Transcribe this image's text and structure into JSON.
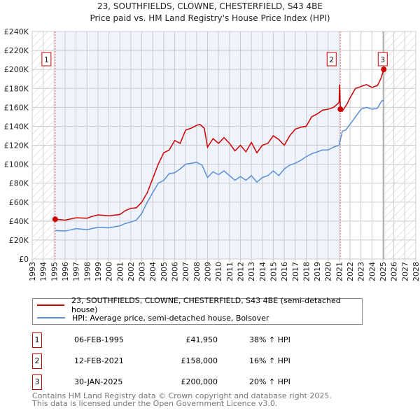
{
  "chart_data": {
    "type": "line",
    "title": "23, SOUTHFIELDS, CLOWNE, CHESTERFIELD, S43 4BE",
    "subtitle": "Price paid vs. HM Land Registry's House Price Index (HPI)",
    "xlim": [
      1993,
      2028
    ],
    "ylim": [
      0,
      240000
    ],
    "x_ticks": [
      "1993",
      "1994",
      "1995",
      "1996",
      "1997",
      "1998",
      "1999",
      "2000",
      "2001",
      "2002",
      "2003",
      "2004",
      "2005",
      "2006",
      "2007",
      "2008",
      "2009",
      "2010",
      "2011",
      "2012",
      "2013",
      "2014",
      "2015",
      "2016",
      "2017",
      "2018",
      "2019",
      "2020",
      "2021",
      "2022",
      "2023",
      "2024",
      "2025",
      "2026",
      "2027",
      "2028"
    ],
    "y_ticks": [
      {
        "v": 0,
        "label": "£0"
      },
      {
        "v": 20000,
        "label": "£20K"
      },
      {
        "v": 40000,
        "label": "£40K"
      },
      {
        "v": 60000,
        "label": "£60K"
      },
      {
        "v": 80000,
        "label": "£80K"
      },
      {
        "v": 100000,
        "label": "£100K"
      },
      {
        "v": 120000,
        "label": "£120K"
      },
      {
        "v": 140000,
        "label": "£140K"
      },
      {
        "v": 160000,
        "label": "£160K"
      },
      {
        "v": 180000,
        "label": "£180K"
      },
      {
        "v": 200000,
        "label": "£200K"
      },
      {
        "v": 220000,
        "label": "£220K"
      },
      {
        "v": 240000,
        "label": "£240K"
      }
    ],
    "grid": true,
    "series": [
      {
        "name": "23, SOUTHFIELDS, CLOWNE, CHESTERFIELD, S43 4BE (semi-detached house)",
        "color": "#cc0000",
        "x": [
          1995.1,
          1996,
          1997,
          1998,
          1998.5,
          1999,
          2000,
          2001,
          2001.5,
          2002,
          2002.5,
          2003,
          2003.5,
          2004,
          2004.5,
          2005,
          2005.5,
          2006,
          2006.5,
          2007,
          2007.5,
          2008,
          2008.3,
          2008.7,
          2009,
          2009.5,
          2010,
          2010.5,
          2011,
          2011.5,
          2012,
          2012.5,
          2013,
          2013.5,
          2014,
          2014.5,
          2015,
          2015.5,
          2016,
          2016.5,
          2017,
          2017.5,
          2018,
          2018.5,
          2019,
          2019.5,
          2020,
          2020.5,
          2021.0,
          2021.05,
          2021.12,
          2021.3,
          2021.7,
          2022,
          2022.5,
          2023,
          2023.5,
          2024,
          2024.5,
          2024.8,
          2025.08
        ],
        "y": [
          42000,
          41000,
          43500,
          43000,
          45000,
          46500,
          45500,
          47000,
          51000,
          53500,
          54000,
          60000,
          70000,
          85000,
          100000,
          112000,
          115000,
          125000,
          122000,
          136000,
          138000,
          141000,
          142000,
          138000,
          118000,
          127000,
          122000,
          128000,
          122000,
          114000,
          120000,
          113000,
          123000,
          112000,
          120000,
          122000,
          130000,
          126000,
          120000,
          130000,
          137000,
          139000,
          140000,
          150000,
          153000,
          157000,
          158000,
          160000,
          165000,
          184000,
          158000,
          156000,
          163000,
          170000,
          180000,
          182000,
          184000,
          181000,
          183000,
          190000,
          200000
        ]
      },
      {
        "name": "HPI: Average price, semi-detached house, Bolsover",
        "color": "#5b8fd6",
        "x": [
          1995.1,
          1996,
          1997,
          1998,
          1999,
          2000,
          2001,
          2001.5,
          2002,
          2002.5,
          2003,
          2003.5,
          2004,
          2004.5,
          2005,
          2005.5,
          2006,
          2006.5,
          2007,
          2007.5,
          2008,
          2008.5,
          2009,
          2009.5,
          2010,
          2010.5,
          2011,
          2011.5,
          2012,
          2012.5,
          2013,
          2013.5,
          2014,
          2014.5,
          2015,
          2015.5,
          2016,
          2016.5,
          2017,
          2017.5,
          2018,
          2018.5,
          2019,
          2019.5,
          2020,
          2020.5,
          2021,
          2021.3,
          2021.6,
          2022,
          2022.5,
          2023,
          2023.5,
          2024,
          2024.5,
          2024.9,
          2025.08
        ],
        "y": [
          30000,
          29500,
          32000,
          31000,
          33500,
          33000,
          35000,
          37500,
          39000,
          41000,
          48000,
          60000,
          70000,
          80000,
          83000,
          90000,
          91000,
          95000,
          100000,
          101000,
          102000,
          99000,
          86000,
          92000,
          89000,
          93000,
          88000,
          83000,
          87000,
          83000,
          88000,
          81000,
          86000,
          88000,
          93000,
          88000,
          95000,
          99000,
          101000,
          104000,
          108000,
          111000,
          113000,
          115000,
          115000,
          118000,
          120000,
          135000,
          136000,
          142000,
          150000,
          158000,
          160000,
          158000,
          159000,
          167000,
          167000
        ]
      }
    ],
    "sales": [
      {
        "label": "1",
        "x": 1995.1,
        "y": 41950
      },
      {
        "label": "2",
        "x": 2021.12,
        "y": 158000
      },
      {
        "label": "3",
        "x": 2025.08,
        "y": 200000
      }
    ]
  },
  "legend": {
    "property": "23, SOUTHFIELDS, CLOWNE, CHESTERFIELD, S43 4BE (semi-detached house)",
    "hpi": "HPI: Average price, semi-detached house, Bolsover"
  },
  "transactions": [
    {
      "num": "1",
      "date": "06-FEB-1995",
      "price": "£41,950",
      "hpi": "38% ↑ HPI"
    },
    {
      "num": "2",
      "date": "12-FEB-2021",
      "price": "£158,000",
      "hpi": "16% ↑ HPI"
    },
    {
      "num": "3",
      "date": "30-JAN-2025",
      "price": "£200,000",
      "hpi": "20% ↑ HPI"
    }
  ],
  "footer": {
    "line1": "Contains HM Land Registry data © Crown copyright and database right 2025.",
    "line2": "This data is licensed under the Open Government Licence v3.0."
  }
}
